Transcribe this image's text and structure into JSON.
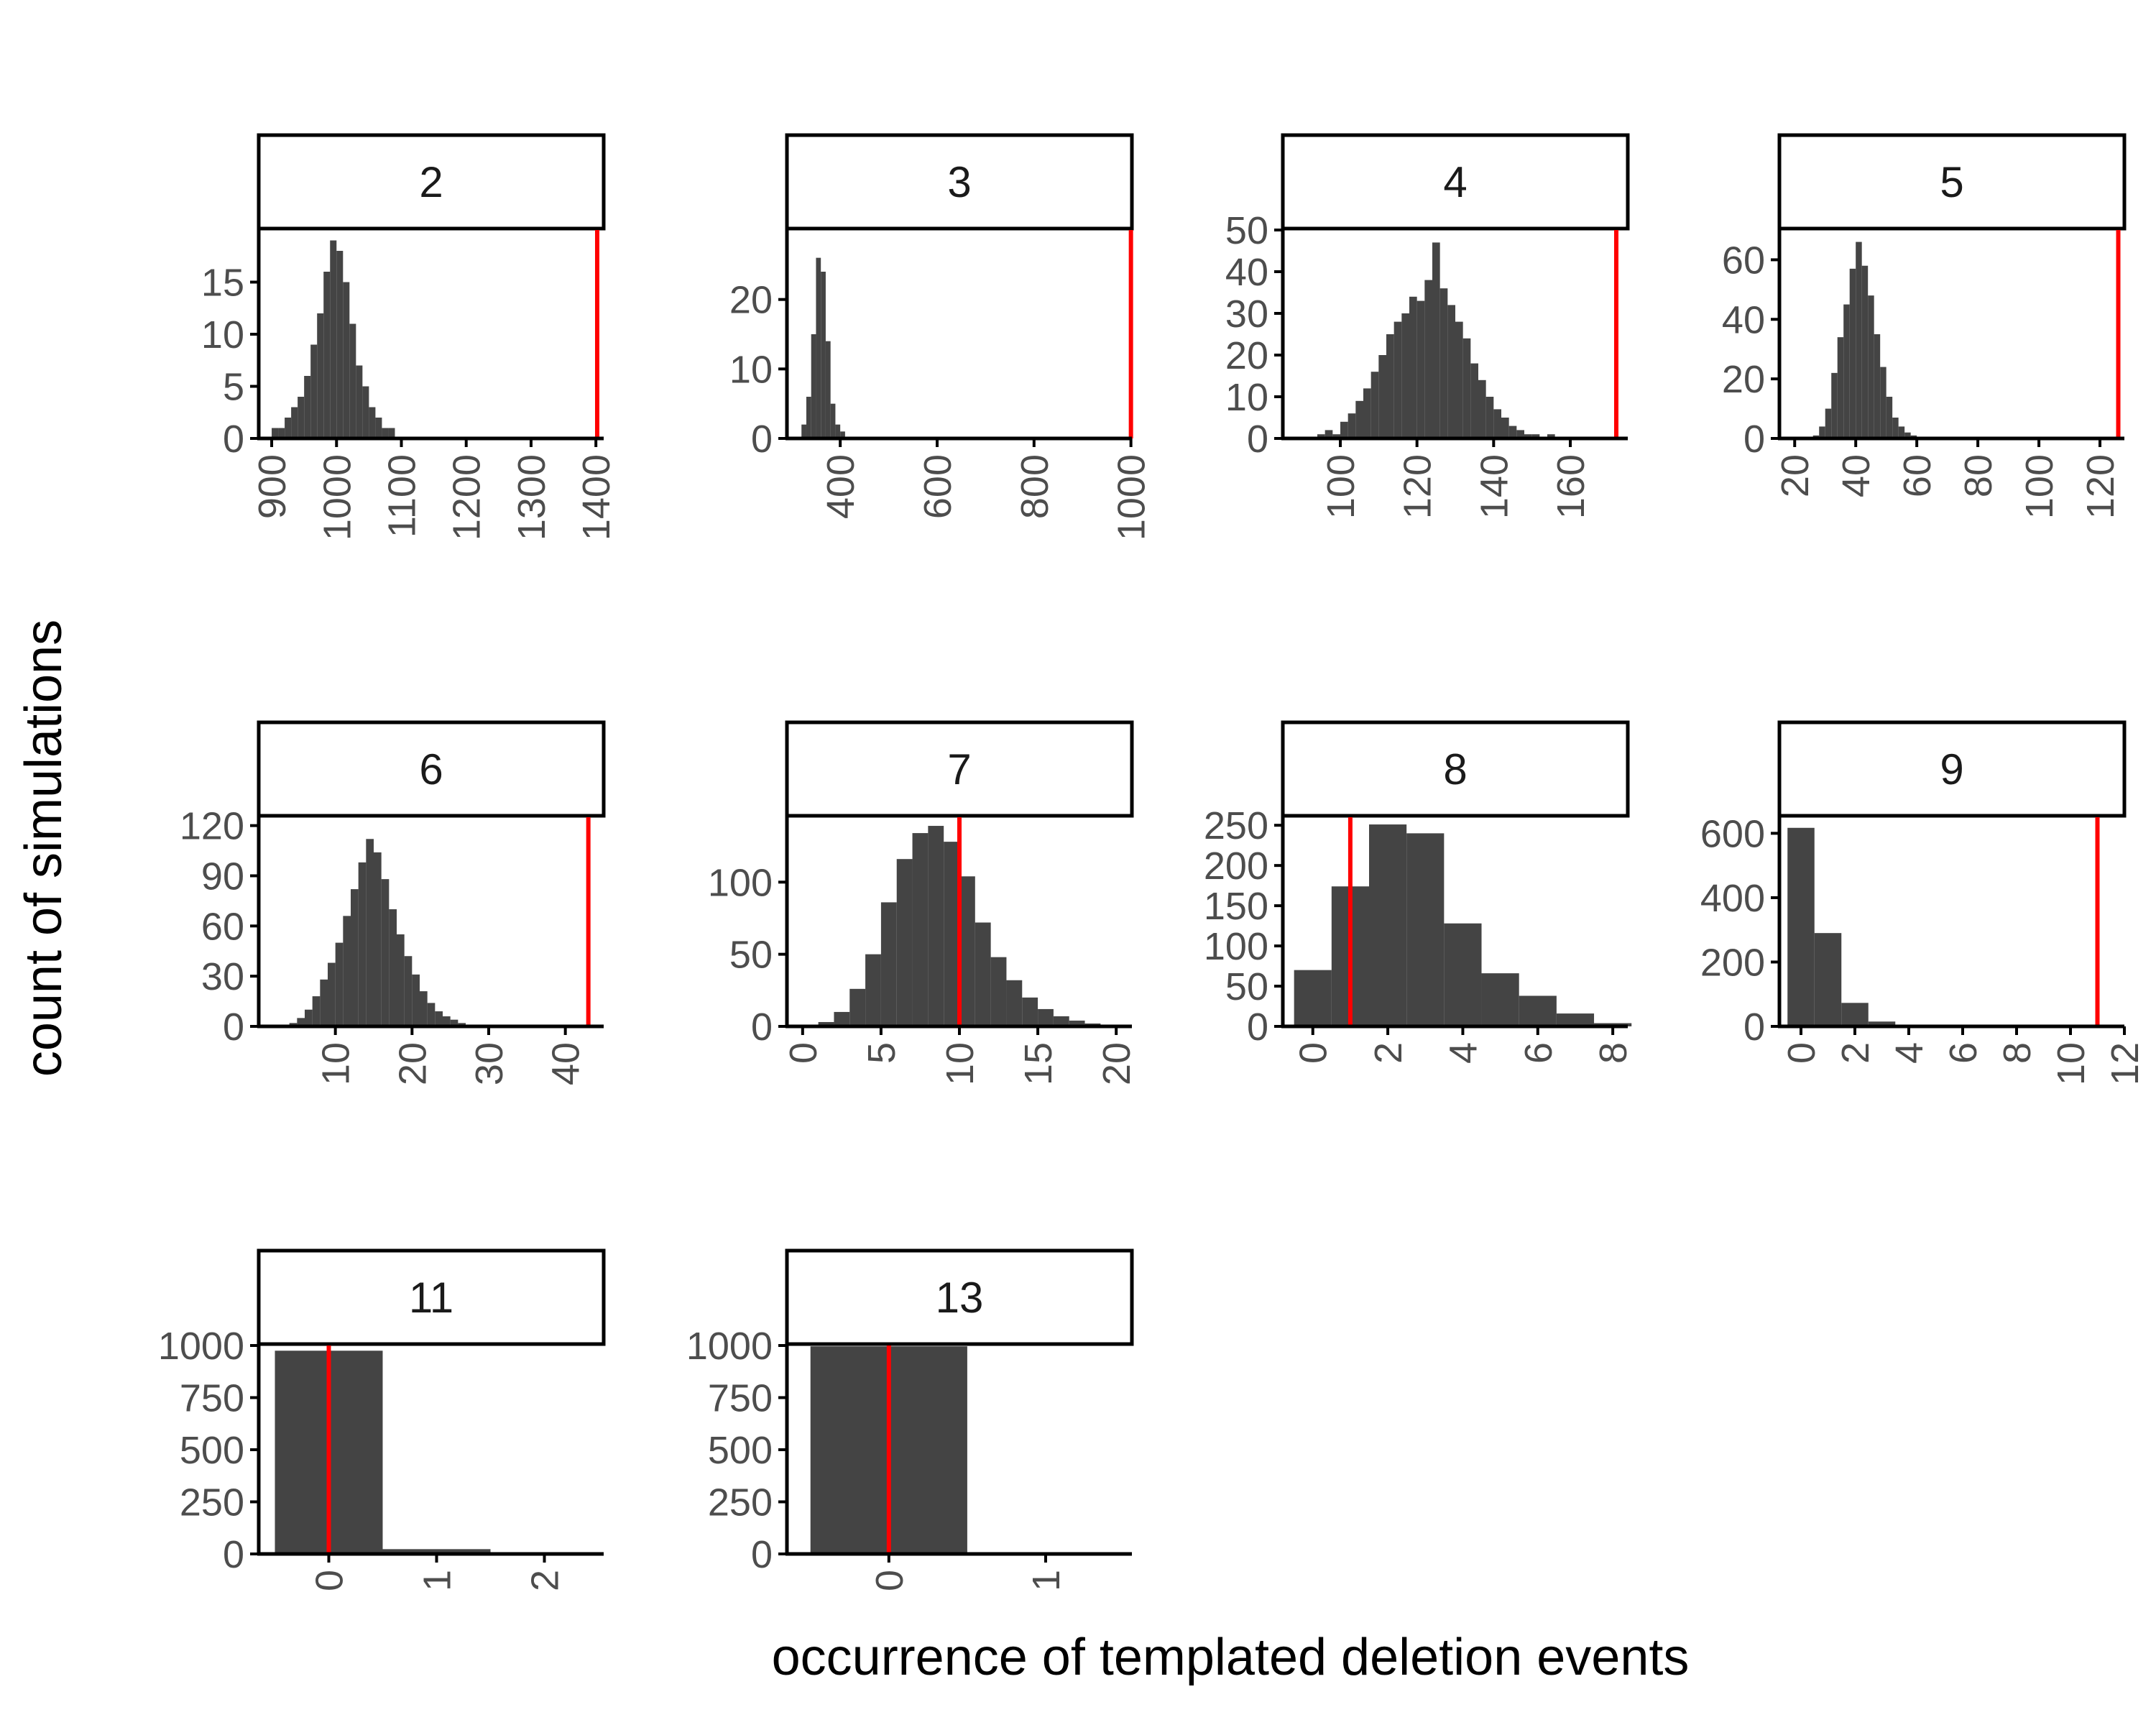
{
  "figure": {
    "xlabel": "occurrence of templated deletion events",
    "ylabel": "count of simulations"
  },
  "colors": {
    "bar": "#444444",
    "observed_line": "#ff0000",
    "axis": "#000000",
    "tick_text": "#4d4d4d"
  },
  "chart_data": [
    {
      "type": "histogram",
      "facet": "2",
      "xlim": [
        880,
        1412
      ],
      "ylim": [
        0,
        20
      ],
      "xticks": [
        900,
        1000,
        1100,
        1200,
        1300,
        1400
      ],
      "yticks": [
        0,
        5,
        10,
        15
      ],
      "observed": 1402,
      "bins": [
        {
          "x0": 900,
          "x1": 910,
          "count": 1
        },
        {
          "x0": 910,
          "x1": 920,
          "count": 1
        },
        {
          "x0": 920,
          "x1": 930,
          "count": 2
        },
        {
          "x0": 930,
          "x1": 940,
          "count": 3
        },
        {
          "x0": 940,
          "x1": 950,
          "count": 4
        },
        {
          "x0": 950,
          "x1": 960,
          "count": 6
        },
        {
          "x0": 960,
          "x1": 970,
          "count": 9
        },
        {
          "x0": 970,
          "x1": 980,
          "count": 12
        },
        {
          "x0": 980,
          "x1": 990,
          "count": 16
        },
        {
          "x0": 990,
          "x1": 1000,
          "count": 19
        },
        {
          "x0": 1000,
          "x1": 1010,
          "count": 18
        },
        {
          "x0": 1010,
          "x1": 1020,
          "count": 15
        },
        {
          "x0": 1020,
          "x1": 1030,
          "count": 11
        },
        {
          "x0": 1030,
          "x1": 1040,
          "count": 7
        },
        {
          "x0": 1040,
          "x1": 1050,
          "count": 5
        },
        {
          "x0": 1050,
          "x1": 1060,
          "count": 3
        },
        {
          "x0": 1060,
          "x1": 1070,
          "count": 2
        },
        {
          "x0": 1070,
          "x1": 1080,
          "count": 1
        },
        {
          "x0": 1080,
          "x1": 1090,
          "count": 1
        }
      ]
    },
    {
      "type": "histogram",
      "facet": "3",
      "xlim": [
        290,
        1002
      ],
      "ylim": [
        0,
        30
      ],
      "xticks": [
        400,
        600,
        800,
        1000
      ],
      "yticks": [
        0,
        10,
        20
      ],
      "observed": 1000,
      "bins": [
        {
          "x0": 320,
          "x1": 330,
          "count": 2
        },
        {
          "x0": 330,
          "x1": 340,
          "count": 6
        },
        {
          "x0": 340,
          "x1": 350,
          "count": 15
        },
        {
          "x0": 350,
          "x1": 360,
          "count": 26
        },
        {
          "x0": 360,
          "x1": 370,
          "count": 24
        },
        {
          "x0": 370,
          "x1": 380,
          "count": 14
        },
        {
          "x0": 380,
          "x1": 390,
          "count": 5
        },
        {
          "x0": 390,
          "x1": 400,
          "count": 2
        },
        {
          "x0": 400,
          "x1": 410,
          "count": 1
        }
      ]
    },
    {
      "type": "histogram",
      "facet": "4",
      "xlim": [
        85,
        175
      ],
      "ylim": [
        0,
        50
      ],
      "xticks": [
        100,
        120,
        140,
        160
      ],
      "yticks": [
        0,
        10,
        20,
        30,
        40,
        50
      ],
      "observed": 172,
      "bins": [
        {
          "x0": 94,
          "x1": 96,
          "count": 1
        },
        {
          "x0": 96,
          "x1": 98,
          "count": 2
        },
        {
          "x0": 98,
          "x1": 100,
          "count": 1
        },
        {
          "x0": 100,
          "x1": 102,
          "count": 4
        },
        {
          "x0": 102,
          "x1": 104,
          "count": 6
        },
        {
          "x0": 104,
          "x1": 106,
          "count": 9
        },
        {
          "x0": 106,
          "x1": 108,
          "count": 12
        },
        {
          "x0": 108,
          "x1": 110,
          "count": 16
        },
        {
          "x0": 110,
          "x1": 112,
          "count": 20
        },
        {
          "x0": 112,
          "x1": 114,
          "count": 25
        },
        {
          "x0": 114,
          "x1": 116,
          "count": 28
        },
        {
          "x0": 116,
          "x1": 118,
          "count": 30
        },
        {
          "x0": 118,
          "x1": 120,
          "count": 34
        },
        {
          "x0": 120,
          "x1": 122,
          "count": 33
        },
        {
          "x0": 122,
          "x1": 124,
          "count": 38
        },
        {
          "x0": 124,
          "x1": 126,
          "count": 47
        },
        {
          "x0": 126,
          "x1": 128,
          "count": 36
        },
        {
          "x0": 128,
          "x1": 130,
          "count": 32
        },
        {
          "x0": 130,
          "x1": 132,
          "count": 28
        },
        {
          "x0": 132,
          "x1": 134,
          "count": 24
        },
        {
          "x0": 134,
          "x1": 136,
          "count": 18
        },
        {
          "x0": 136,
          "x1": 138,
          "count": 14
        },
        {
          "x0": 138,
          "x1": 140,
          "count": 10
        },
        {
          "x0": 140,
          "x1": 142,
          "count": 7
        },
        {
          "x0": 142,
          "x1": 144,
          "count": 5
        },
        {
          "x0": 144,
          "x1": 146,
          "count": 3
        },
        {
          "x0": 146,
          "x1": 148,
          "count": 2
        },
        {
          "x0": 148,
          "x1": 150,
          "count": 1
        },
        {
          "x0": 150,
          "x1": 152,
          "count": 1
        },
        {
          "x0": 154,
          "x1": 156,
          "count": 1
        }
      ]
    },
    {
      "type": "histogram",
      "facet": "5",
      "xlim": [
        15,
        128
      ],
      "ylim": [
        0,
        70
      ],
      "xticks": [
        20,
        40,
        60,
        80,
        100,
        120
      ],
      "yticks": [
        0,
        20,
        40,
        60
      ],
      "observed": 126,
      "bins": [
        {
          "x0": 26,
          "x1": 28,
          "count": 1
        },
        {
          "x0": 28,
          "x1": 30,
          "count": 4
        },
        {
          "x0": 30,
          "x1": 32,
          "count": 10
        },
        {
          "x0": 32,
          "x1": 34,
          "count": 22
        },
        {
          "x0": 34,
          "x1": 36,
          "count": 34
        },
        {
          "x0": 36,
          "x1": 38,
          "count": 45
        },
        {
          "x0": 38,
          "x1": 40,
          "count": 57
        },
        {
          "x0": 40,
          "x1": 42,
          "count": 66
        },
        {
          "x0": 42,
          "x1": 44,
          "count": 58
        },
        {
          "x0": 44,
          "x1": 46,
          "count": 48
        },
        {
          "x0": 46,
          "x1": 48,
          "count": 35
        },
        {
          "x0": 48,
          "x1": 50,
          "count": 24
        },
        {
          "x0": 50,
          "x1": 52,
          "count": 14
        },
        {
          "x0": 52,
          "x1": 54,
          "count": 7
        },
        {
          "x0": 54,
          "x1": 56,
          "count": 4
        },
        {
          "x0": 56,
          "x1": 58,
          "count": 2
        },
        {
          "x0": 58,
          "x1": 60,
          "count": 1
        }
      ]
    },
    {
      "type": "histogram",
      "facet": "6",
      "xlim": [
        0,
        45
      ],
      "ylim": [
        0,
        125
      ],
      "xticks": [
        10,
        20,
        30,
        40
      ],
      "yticks": [
        0,
        30,
        60,
        90,
        120
      ],
      "observed": 43,
      "bins": [
        {
          "x0": 3,
          "x1": 4,
          "count": 1
        },
        {
          "x0": 4,
          "x1": 5,
          "count": 2
        },
        {
          "x0": 5,
          "x1": 6,
          "count": 5
        },
        {
          "x0": 6,
          "x1": 7,
          "count": 10
        },
        {
          "x0": 7,
          "x1": 8,
          "count": 18
        },
        {
          "x0": 8,
          "x1": 9,
          "count": 28
        },
        {
          "x0": 9,
          "x1": 10,
          "count": 38
        },
        {
          "x0": 10,
          "x1": 11,
          "count": 50
        },
        {
          "x0": 11,
          "x1": 12,
          "count": 66
        },
        {
          "x0": 12,
          "x1": 13,
          "count": 82
        },
        {
          "x0": 13,
          "x1": 14,
          "count": 98
        },
        {
          "x0": 14,
          "x1": 15,
          "count": 112
        },
        {
          "x0": 15,
          "x1": 16,
          "count": 104
        },
        {
          "x0": 16,
          "x1": 17,
          "count": 88
        },
        {
          "x0": 17,
          "x1": 18,
          "count": 70
        },
        {
          "x0": 18,
          "x1": 19,
          "count": 55
        },
        {
          "x0": 19,
          "x1": 20,
          "count": 42
        },
        {
          "x0": 20,
          "x1": 21,
          "count": 31
        },
        {
          "x0": 21,
          "x1": 22,
          "count": 21
        },
        {
          "x0": 22,
          "x1": 23,
          "count": 14
        },
        {
          "x0": 23,
          "x1": 24,
          "count": 9
        },
        {
          "x0": 24,
          "x1": 25,
          "count": 6
        },
        {
          "x0": 25,
          "x1": 26,
          "count": 4
        },
        {
          "x0": 26,
          "x1": 27,
          "count": 2
        },
        {
          "x0": 27,
          "x1": 28,
          "count": 1
        }
      ]
    },
    {
      "type": "histogram",
      "facet": "7",
      "xlim": [
        -1,
        21
      ],
      "ylim": [
        0,
        145
      ],
      "xticks": [
        0,
        5,
        10,
        15,
        20
      ],
      "yticks": [
        0,
        50,
        100
      ],
      "observed": 10,
      "bins": [
        {
          "x0": 0,
          "x1": 1,
          "count": 1
        },
        {
          "x0": 1,
          "x1": 2,
          "count": 3
        },
        {
          "x0": 2,
          "x1": 3,
          "count": 10
        },
        {
          "x0": 3,
          "x1": 4,
          "count": 26
        },
        {
          "x0": 4,
          "x1": 5,
          "count": 50
        },
        {
          "x0": 5,
          "x1": 6,
          "count": 86
        },
        {
          "x0": 6,
          "x1": 7,
          "count": 116
        },
        {
          "x0": 7,
          "x1": 8,
          "count": 134
        },
        {
          "x0": 8,
          "x1": 9,
          "count": 139
        },
        {
          "x0": 9,
          "x1": 10,
          "count": 128
        },
        {
          "x0": 10,
          "x1": 11,
          "count": 104
        },
        {
          "x0": 11,
          "x1": 12,
          "count": 72
        },
        {
          "x0": 12,
          "x1": 13,
          "count": 48
        },
        {
          "x0": 13,
          "x1": 14,
          "count": 32
        },
        {
          "x0": 14,
          "x1": 15,
          "count": 20
        },
        {
          "x0": 15,
          "x1": 16,
          "count": 12
        },
        {
          "x0": 16,
          "x1": 17,
          "count": 7
        },
        {
          "x0": 17,
          "x1": 18,
          "count": 4
        },
        {
          "x0": 18,
          "x1": 19,
          "count": 2
        },
        {
          "x0": 19,
          "x1": 20,
          "count": 1
        }
      ]
    },
    {
      "type": "histogram",
      "facet": "8",
      "xlim": [
        -0.8,
        8.4
      ],
      "ylim": [
        0,
        260
      ],
      "xticks": [
        0,
        2,
        4,
        6,
        8
      ],
      "yticks": [
        0,
        50,
        100,
        150,
        200,
        250
      ],
      "observed": 1,
      "bins": [
        {
          "x0": -0.5,
          "x1": 0.5,
          "count": 70
        },
        {
          "x0": 0.5,
          "x1": 1.5,
          "count": 174
        },
        {
          "x0": 1.5,
          "x1": 2.5,
          "count": 251
        },
        {
          "x0": 2.5,
          "x1": 3.5,
          "count": 240
        },
        {
          "x0": 3.5,
          "x1": 4.5,
          "count": 128
        },
        {
          "x0": 4.5,
          "x1": 5.5,
          "count": 66
        },
        {
          "x0": 5.5,
          "x1": 6.5,
          "count": 38
        },
        {
          "x0": 6.5,
          "x1": 7.5,
          "count": 16
        },
        {
          "x0": 7.5,
          "x1": 8.5,
          "count": 4
        }
      ]
    },
    {
      "type": "histogram",
      "facet": "9",
      "xlim": [
        -0.8,
        12
      ],
      "ylim": [
        0,
        650
      ],
      "xticks": [
        0,
        2,
        4,
        6,
        8,
        10,
        12
      ],
      "yticks": [
        0,
        200,
        400,
        600
      ],
      "observed": 11,
      "bins": [
        {
          "x0": -0.5,
          "x1": 0.5,
          "count": 617
        },
        {
          "x0": 0.5,
          "x1": 1.5,
          "count": 290
        },
        {
          "x0": 1.5,
          "x1": 2.5,
          "count": 73
        },
        {
          "x0": 2.5,
          "x1": 3.5,
          "count": 15
        },
        {
          "x0": 3.5,
          "x1": 4.5,
          "count": 3
        }
      ]
    },
    {
      "type": "histogram",
      "facet": "11",
      "xlim": [
        -0.65,
        2.55
      ],
      "ylim": [
        0,
        1000
      ],
      "xticks": [
        0,
        1,
        2
      ],
      "yticks": [
        0,
        250,
        500,
        750,
        1000
      ],
      "observed": 0,
      "bins": [
        {
          "x0": -0.5,
          "x1": 0.5,
          "count": 975
        },
        {
          "x0": 0.5,
          "x1": 1.5,
          "count": 23
        },
        {
          "x0": 1.5,
          "x1": 2.5,
          "count": 2
        }
      ]
    },
    {
      "type": "histogram",
      "facet": "13",
      "xlim": [
        -0.65,
        1.55
      ],
      "ylim": [
        0,
        1000
      ],
      "xticks": [
        0,
        1
      ],
      "yticks": [
        0,
        250,
        500,
        750,
        1000
      ],
      "observed": 0,
      "bins": [
        {
          "x0": -0.5,
          "x1": 0.5,
          "count": 996
        },
        {
          "x0": 0.5,
          "x1": 1.5,
          "count": 4
        }
      ]
    }
  ]
}
